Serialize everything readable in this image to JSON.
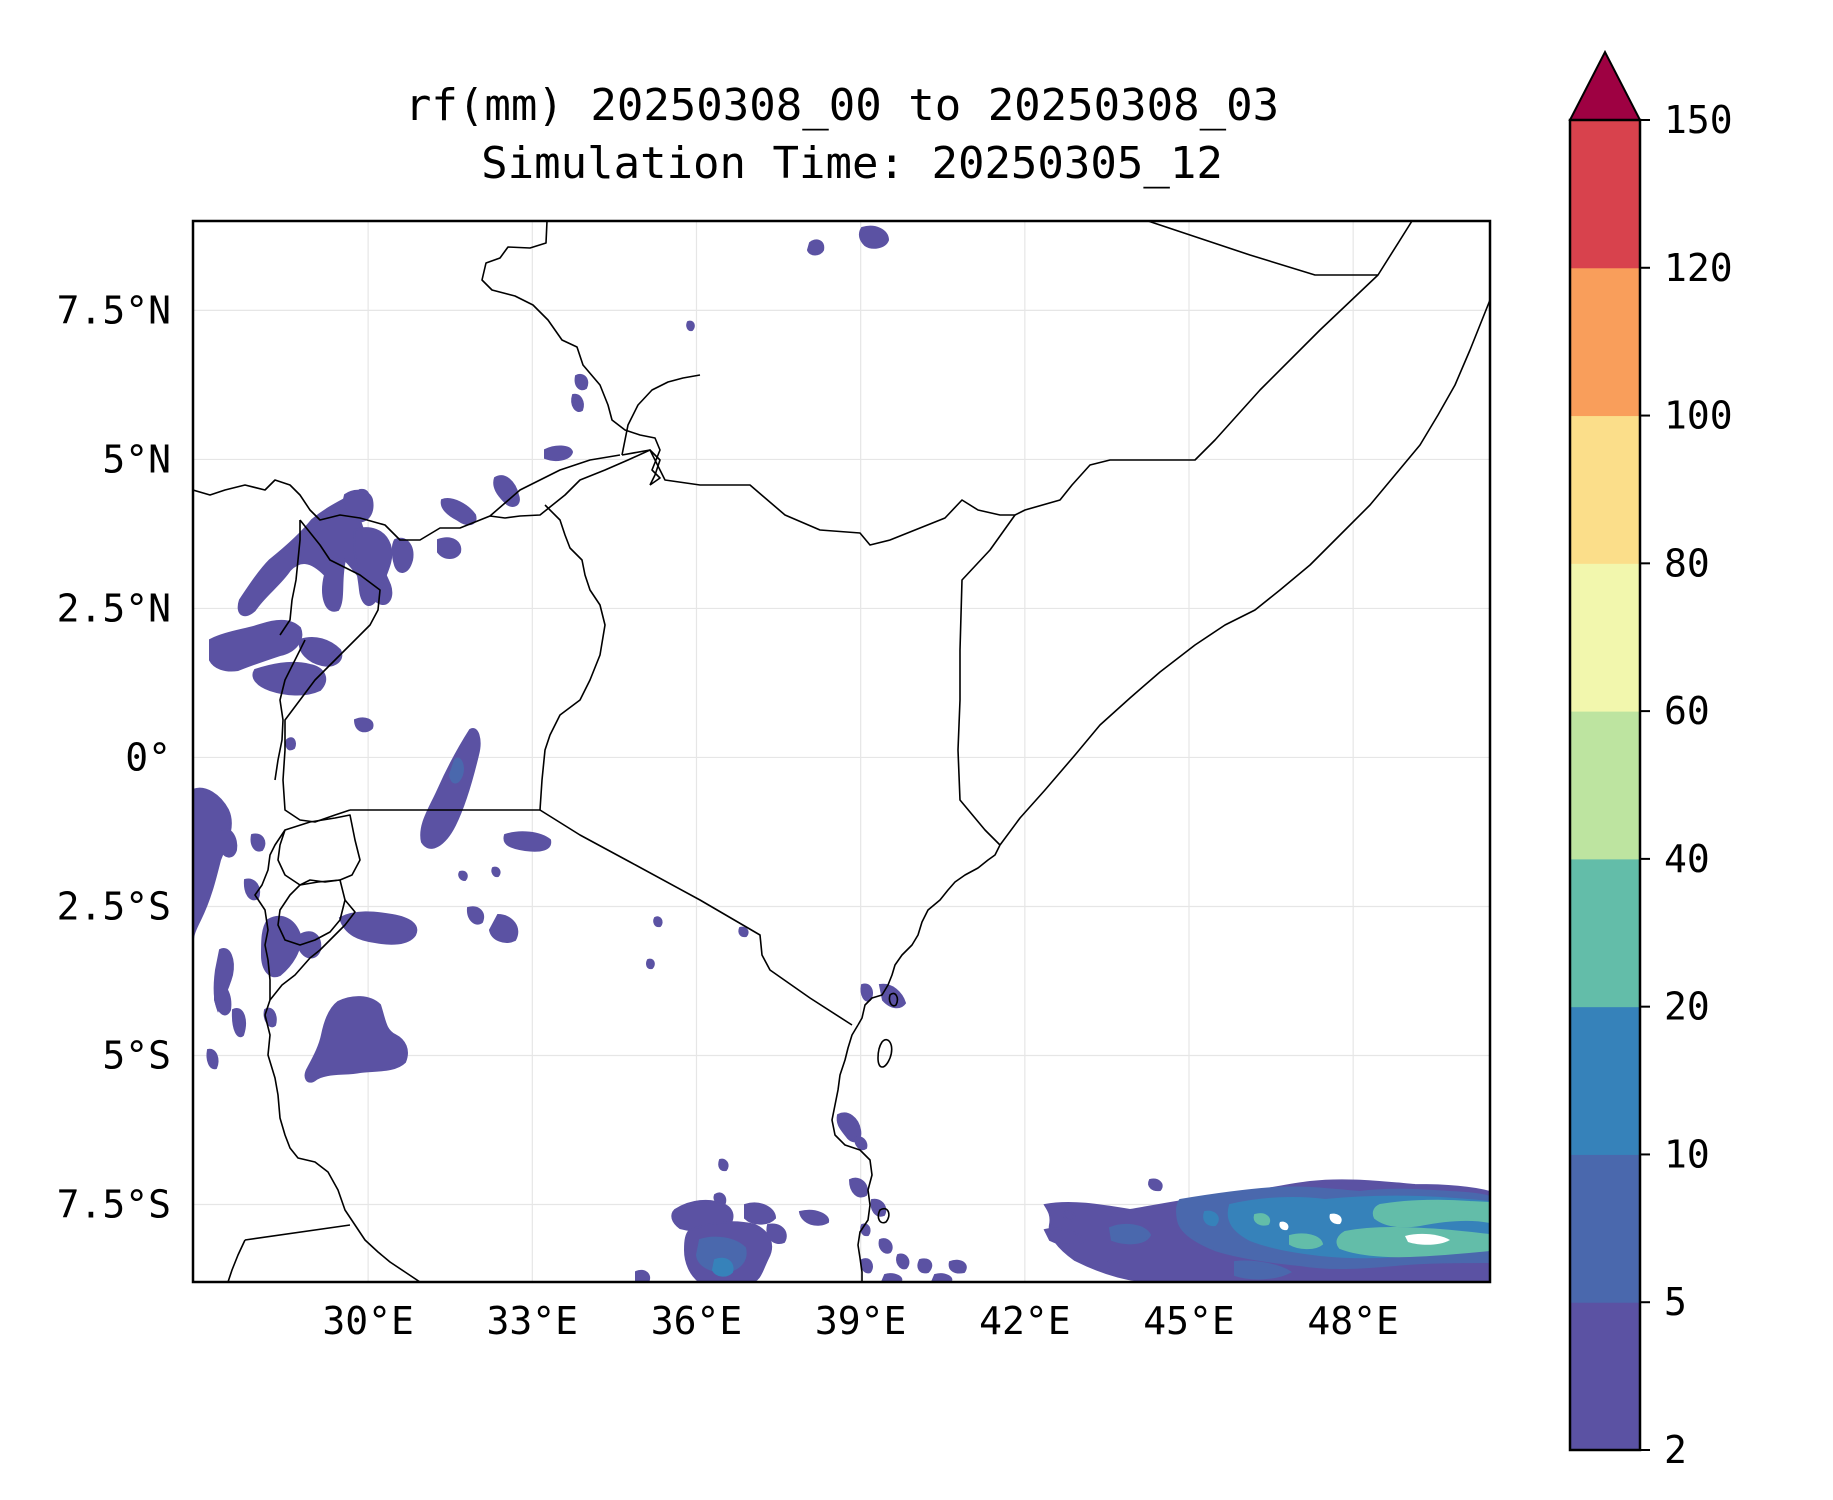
{
  "title": {
    "line1": "rf(mm) 20250308_00 to 20250308_03",
    "line2": "Simulation Time: 20250305_12"
  },
  "map": {
    "lon_range": [
      26.8,
      50.5
    ],
    "lat_range": [
      -8.8,
      9.0
    ],
    "gridlines": true,
    "x_ticks": [
      {
        "value": 30,
        "label": "30°E"
      },
      {
        "value": 33,
        "label": "33°E"
      },
      {
        "value": 36,
        "label": "36°E"
      },
      {
        "value": 39,
        "label": "39°E"
      },
      {
        "value": 42,
        "label": "42°E"
      },
      {
        "value": 45,
        "label": "45°E"
      },
      {
        "value": 48,
        "label": "48°E"
      }
    ],
    "y_ticks": [
      {
        "value": 7.5,
        "label": "7.5°N"
      },
      {
        "value": 5,
        "label": "5°N"
      },
      {
        "value": 2.5,
        "label": "2.5°N"
      },
      {
        "value": 0,
        "label": "0°"
      },
      {
        "value": -2.5,
        "label": "2.5°S"
      },
      {
        "value": -5,
        "label": "5°S"
      },
      {
        "value": -7.5,
        "label": "7.5°S"
      }
    ]
  },
  "colorbar": {
    "levels": [
      2,
      5,
      10,
      20,
      40,
      60,
      80,
      100,
      120,
      150
    ],
    "labels": [
      "2",
      "5",
      "10",
      "20",
      "40",
      "60",
      "80",
      "100",
      "120",
      "150"
    ],
    "colors": [
      "#5b52a3",
      "#4a68ad",
      "#3682ba",
      "#63bda9",
      "#bde4a0",
      "#f2f7ad",
      "#fbde8a",
      "#f99e5b",
      "#d8424d"
    ],
    "extend_color": "#9e0142",
    "extend": "max"
  }
}
